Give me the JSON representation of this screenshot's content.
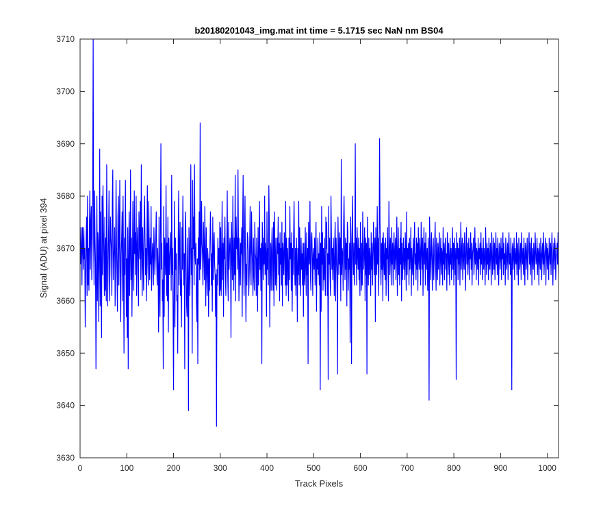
{
  "chart_data": {
    "type": "line",
    "title": "b20180201043_img.mat int time = 5.1715 sec  NaN nm BS04",
    "xlabel": "Track Pixels",
    "ylabel": "Signal (ADU) at pixel 394",
    "xlim": [
      0,
      1024
    ],
    "ylim": [
      3630,
      3710
    ],
    "xticks": [
      0,
      100,
      200,
      300,
      400,
      500,
      600,
      700,
      800,
      900,
      1000
    ],
    "yticks": [
      3630,
      3640,
      3650,
      3660,
      3670,
      3680,
      3690,
      3700,
      3710
    ],
    "grid": false,
    "line_color": "#0000ff",
    "series": [
      {
        "x_start": 1,
        "x_step": 1,
        "values": [
          3667,
          3674,
          3670,
          3663,
          3674,
          3671,
          3666,
          3674,
          3668,
          3670,
          3655,
          3665,
          3672,
          3676,
          3661,
          3680,
          3663,
          3670,
          3662,
          3674,
          3681,
          3666,
          3675,
          3678,
          3664,
          3672,
          3680,
          3710,
          3671,
          3663,
          3681,
          3672,
          3667,
          3647,
          3663,
          3680,
          3660,
          3673,
          3671,
          3656,
          3669,
          3689,
          3659,
          3677,
          3665,
          3653,
          3680,
          3665,
          3682,
          3674,
          3668,
          3661,
          3676,
          3662,
          3672,
          3660,
          3686,
          3671,
          3659,
          3667,
          3673,
          3681,
          3660,
          3666,
          3676,
          3672,
          3670,
          3661,
          3679,
          3685,
          3664,
          3668,
          3670,
          3674,
          3659,
          3667,
          3683,
          3671,
          3665,
          3658,
          3676,
          3680,
          3663,
          3671,
          3683,
          3666,
          3656,
          3669,
          3672,
          3677,
          3660,
          3680,
          3666,
          3650,
          3672,
          3665,
          3683,
          3671,
          3657,
          3668,
          3653,
          3674,
          3647,
          3668,
          3677,
          3661,
          3669,
          3685,
          3664,
          3672,
          3657,
          3666,
          3679,
          3668,
          3662,
          3681,
          3669,
          3673,
          3665,
          3680,
          3661,
          3670,
          3674,
          3667,
          3659,
          3677,
          3672,
          3668,
          3679,
          3664,
          3686,
          3670,
          3661,
          3674,
          3668,
          3662,
          3675,
          3680,
          3672,
          3665,
          3670,
          3660,
          3671,
          3682,
          3667,
          3663,
          3679,
          3670,
          3664,
          3672,
          3667,
          3678,
          3662,
          3667,
          3671,
          3669,
          3663,
          3674,
          3670,
          3665,
          3668,
          3672,
          3677,
          3668,
          3663,
          3670,
          3666,
          3654,
          3676,
          3663,
          3657,
          3675,
          3690,
          3666,
          3671,
          3660,
          3664,
          3647,
          3678,
          3657,
          3672,
          3669,
          3665,
          3682,
          3661,
          3671,
          3660,
          3676,
          3654,
          3672,
          3665,
          3668,
          3670,
          3673,
          3662,
          3684,
          3665,
          3670,
          3658,
          3643,
          3665,
          3679,
          3655,
          3672,
          3666,
          3669,
          3660,
          3661,
          3650,
          3672,
          3681,
          3663,
          3670,
          3675,
          3661,
          3664,
          3655,
          3674,
          3666,
          3680,
          3670,
          3663,
          3669,
          3647,
          3674,
          3677,
          3666,
          3659,
          3657,
          3672,
          3664,
          3639,
          3674,
          3669,
          3661,
          3672,
          3686,
          3665,
          3670,
          3650,
          3683,
          3670,
          3676,
          3663,
          3686,
          3669,
          3667,
          3671,
          3660,
          3656,
          3668,
          3648,
          3672,
          3667,
          3677,
          3664,
          3694,
          3666,
          3669,
          3679,
          3671,
          3669,
          3663,
          3675,
          3670,
          3664,
          3678,
          3668,
          3659,
          3674,
          3666,
          3661,
          3670,
          3668,
          3657,
          3668,
          3662,
          3671,
          3677,
          3671,
          3663,
          3669,
          3658,
          3676,
          3664,
          3670,
          3673,
          3667,
          3665,
          3657,
          3665,
          3636,
          3666,
          3663,
          3672,
          3667,
          3670,
          3661,
          3675,
          3662,
          3674,
          3661,
          3668,
          3679,
          3664,
          3671,
          3657,
          3672,
          3668,
          3676,
          3665,
          3661,
          3669,
          3670,
          3681,
          3665,
          3660,
          3675,
          3666,
          3670,
          3672,
          3669,
          3653,
          3675,
          3670,
          3664,
          3680,
          3668,
          3662,
          3672,
          3665,
          3684,
          3660,
          3676,
          3670,
          3672,
          3666,
          3685,
          3671,
          3660,
          3667,
          3672,
          3663,
          3671,
          3669,
          3674,
          3657,
          3675,
          3684,
          3667,
          3661,
          3672,
          3680,
          3666,
          3656,
          3667,
          3663,
          3673,
          3672,
          3669,
          3661,
          3665,
          3671,
          3678,
          3666,
          3663,
          3677,
          3670,
          3667,
          3661,
          3672,
          3665,
          3662,
          3675,
          3669,
          3668,
          3661,
          3672,
          3667,
          3658,
          3674,
          3663,
          3669,
          3679,
          3666,
          3670,
          3662,
          3671,
          3648,
          3675,
          3670,
          3664,
          3672,
          3667,
          3680,
          3665,
          3671,
          3669,
          3657,
          3677,
          3666,
          3670,
          3663,
          3682,
          3675,
          3655,
          3667,
          3671,
          3662,
          3670,
          3674,
          3666,
          3662,
          3675,
          3659,
          3677,
          3669,
          3663,
          3672,
          3665,
          3662,
          3672,
          3669,
          3676,
          3665,
          3671,
          3660,
          3673,
          3667,
          3670,
          3663,
          3675,
          3659,
          3671,
          3669,
          3665,
          3673,
          3670,
          3663,
          3679,
          3661,
          3672,
          3663,
          3670,
          3667,
          3660,
          3672,
          3664,
          3678,
          3668,
          3671,
          3662,
          3673,
          3658,
          3670,
          3665,
          3672,
          3679,
          3668,
          3663,
          3670,
          3661,
          3672,
          3667,
          3656,
          3670,
          3665,
          3679,
          3663,
          3674,
          3668,
          3661,
          3672,
          3666,
          3669,
          3663,
          3671,
          3657,
          3671,
          3665,
          3663,
          3674,
          3667,
          3661,
          3673,
          3665,
          3670,
          3648,
          3675,
          3670,
          3667,
          3679,
          3665,
          3662,
          3672,
          3673,
          3668,
          3661,
          3670,
          3668,
          3666,
          3672,
          3663,
          3670,
          3675,
          3658,
          3668,
          3666,
          3672,
          3665,
          3669,
          3663,
          3673,
          3643,
          3671,
          3658,
          3678,
          3667,
          3673,
          3662,
          3670,
          3664,
          3672,
          3665,
          3661,
          3676,
          3670,
          3675,
          3661,
          3669,
          3645,
          3678,
          3667,
          3672,
          3665,
          3661,
          3680,
          3672,
          3666,
          3670,
          3664,
          3672,
          3668,
          3661,
          3671,
          3675,
          3660,
          3672,
          3668,
          3665,
          3646,
          3676,
          3670,
          3665,
          3673,
          3667,
          3672,
          3660,
          3687,
          3665,
          3670,
          3669,
          3662,
          3674,
          3680,
          3669,
          3664,
          3672,
          3666,
          3671,
          3659,
          3675,
          3673,
          3662,
          3668,
          3666,
          3671,
          3652,
          3676,
          3670,
          3648,
          3672,
          3680,
          3668,
          3665,
          3671,
          3663,
          3669,
          3690,
          3667,
          3672,
          3663,
          3674,
          3669,
          3666,
          3672,
          3664,
          3670,
          3661,
          3675,
          3668,
          3662,
          3671,
          3663,
          3677,
          3670,
          3666,
          3669,
          3674,
          3660,
          3672,
          3665,
          3671,
          3646,
          3676,
          3669,
          3663,
          3672,
          3665,
          3670,
          3668,
          3661,
          3673,
          3666,
          3671,
          3663,
          3668,
          3675,
          3670,
          3665,
          3672,
          3656,
          3674,
          3669,
          3665,
          3678,
          3667,
          3672,
          3661,
          3669,
          3691,
          3675,
          3668,
          3663,
          3671,
          3666,
          3672,
          3660,
          3673,
          3668,
          3665,
          3671,
          3664,
          3672,
          3661,
          3670,
          3668,
          3674,
          3666,
          3660,
          3679,
          3670,
          3665,
          3672,
          3669,
          3663,
          3674,
          3667,
          3671,
          3663,
          3670,
          3673,
          3666,
          3669,
          3672,
          3664,
          3670,
          3676,
          3661,
          3668,
          3674,
          3665,
          3670,
          3663,
          3672,
          3667,
          3675,
          3660,
          3671,
          3664,
          3668,
          3672,
          3666,
          3670,
          3664,
          3673,
          3669,
          3662,
          3677,
          3665,
          3670,
          3668,
          3671,
          3663,
          3672,
          3666,
          3669,
          3674,
          3661,
          3670,
          3667,
          3665,
          3672,
          3663,
          3670,
          3675,
          3667,
          3669,
          3664,
          3672,
          3666,
          3671,
          3662,
          3674,
          3668,
          3666,
          3672,
          3669,
          3663,
          3675,
          3670,
          3666,
          3672,
          3661,
          3669,
          3674,
          3667,
          3671,
          3663,
          3673,
          3669,
          3666,
          3670,
          3662,
          3672,
          3667,
          3641,
          3676,
          3671,
          3664,
          3669,
          3673,
          3667,
          3662,
          3670,
          3672,
          3664,
          3668,
          3671,
          3675,
          3667,
          3662,
          3672,
          3669,
          3664,
          3671,
          3666,
          3670,
          3673,
          3663,
          3668,
          3672,
          3665,
          3670,
          3669,
          3663,
          3674,
          3667,
          3671,
          3664,
          3670,
          3672,
          3666,
          3669,
          3662,
          3673,
          3670,
          3665,
          3671,
          3668,
          3663,
          3672,
          3667,
          3670,
          3664,
          3669,
          3674,
          3666,
          3671,
          3663,
          3672,
          3669,
          3665,
          3670,
          3645,
          3673,
          3668,
          3671,
          3664,
          3670,
          3667,
          3672,
          3663,
          3669,
          3675,
          3666,
          3670,
          3672,
          3664,
          3668,
          3671,
          3666,
          3673,
          3669,
          3662,
          3670,
          3674,
          3667,
          3671,
          3665,
          3669,
          3672,
          3664,
          3670,
          3668,
          3673,
          3666,
          3671,
          3663,
          3669,
          3670,
          3672,
          3665,
          3668,
          3674,
          3667,
          3671,
          3664,
          3670,
          3669,
          3666,
          3672,
          3663,
          3670,
          3668,
          3671,
          3665,
          3673,
          3667,
          3670,
          3664,
          3669,
          3672,
          3666,
          3670,
          3668,
          3663,
          3674,
          3669,
          3665,
          3671,
          3667,
          3670,
          3664,
          3672,
          3668,
          3666,
          3671,
          3669,
          3663,
          3673,
          3670,
          3665,
          3668,
          3672,
          3666,
          3671,
          3664,
          3669,
          3673,
          3667,
          3670,
          3665,
          3672,
          3668,
          3663,
          3671,
          3670,
          3666,
          3669,
          3672,
          3664,
          3670,
          3668,
          3673,
          3665,
          3671,
          3667,
          3669,
          3663,
          3672,
          3670,
          3666,
          3668,
          3671,
          3664,
          3670,
          3673,
          3667,
          3669,
          3665,
          3672,
          3668,
          3643,
          3670,
          3671,
          3666,
          3669,
          3672,
          3664,
          3670,
          3668,
          3667,
          3673,
          3665,
          3671,
          3669,
          3663,
          3672,
          3670,
          3666,
          3668,
          3671,
          3664,
          3673,
          3669,
          3667,
          3670,
          3665,
          3672,
          3668,
          3663,
          3671,
          3670,
          3666,
          3669,
          3672,
          3664,
          3668,
          3670,
          3673,
          3667,
          3671,
          3665,
          3669,
          3672,
          3663,
          3670,
          3668,
          3666,
          3671,
          3669,
          3664,
          3673,
          3670,
          3667,
          3668,
          3672,
          3665,
          3670,
          3669,
          3663,
          3671,
          3668,
          3666,
          3672,
          3670,
          3664,
          3669,
          3671,
          3667,
          3673,
          3665,
          3668,
          3670,
          3672,
          3663,
          3669,
          3671,
          3666,
          3670,
          3668,
          3664,
          3672,
          3669,
          3667,
          3671,
          3665,
          3670,
          3673,
          3668,
          3663,
          3669,
          3671,
          3666,
          3672,
          3670,
          3664,
          3668,
          3669,
          3671,
          3667,
          3673,
          3665,
          3670,
          3672,
          3668,
          3663,
          3669,
          3671,
          3666,
          3670,
          3672,
          3664,
          3668,
          3670,
          3667,
          3671,
          3669,
          3665,
          3673,
          3670,
          3668,
          3663,
          3672,
          3669,
          3666,
          3671,
          3670,
          3664
        ]
      }
    ],
    "overlay": {
      "amplitude_note": "",
      "envelope": []
    }
  }
}
